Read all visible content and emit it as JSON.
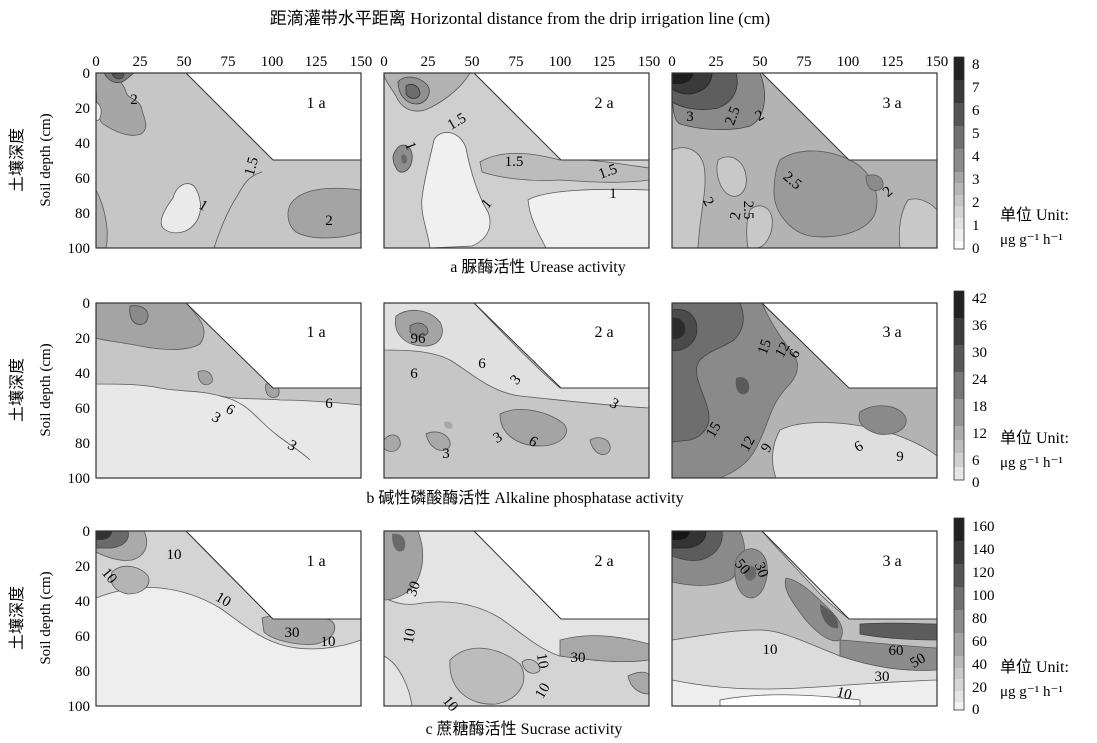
{
  "figure": {
    "top_axis_title": "距滴灌带水平距离 Horizontal distance from the drip irrigation line (cm)",
    "y_axis_title_cn": "土壤深度",
    "y_axis_title_en": "Soil depth (cm)",
    "x_ticks": [
      "0",
      "25",
      "50",
      "75",
      "100",
      "125",
      "150"
    ],
    "y_ticks": [
      "0",
      "20",
      "40",
      "60",
      "80",
      "100"
    ]
  },
  "chart_data": [
    {
      "type": "heatmap",
      "title": "a 脲酶活性 Urease activity",
      "panels": [
        "1 a",
        "2 a",
        "3 a"
      ],
      "xlim": [
        0,
        150
      ],
      "ylim": [
        100,
        0
      ],
      "colorbar": {
        "ticks": [
          "0",
          "1",
          "2",
          "3",
          "4",
          "5",
          "6",
          "7",
          "8"
        ],
        "unit_cn": "单位 Unit:",
        "unit_en": "μg g⁻¹ h⁻¹"
      },
      "contour_labels": [
        {
          "panel": 1,
          "labels": [
            {
              "text": "2",
              "x": 15,
              "y": 20
            },
            {
              "text": "1.5",
              "x": 60,
              "y": 55
            },
            {
              "text": "1",
              "x": 42,
              "y": 80
            },
            {
              "text": "2",
              "x": 130,
              "y": 85
            }
          ]
        },
        {
          "panel": 2,
          "labels": [
            {
              "text": "1.5",
              "x": 30,
              "y": 30
            },
            {
              "text": "1",
              "x": 12,
              "y": 47
            },
            {
              "text": "1.5",
              "x": 51,
              "y": 58
            },
            {
              "text": "1.5",
              "x": 92,
              "y": 67
            },
            {
              "text": "1",
              "x": 52,
              "y": 87
            },
            {
              "text": "1",
              "x": 130,
              "y": 73
            }
          ]
        },
        {
          "panel": 3,
          "labels": [
            {
              "text": "3",
              "x": 10,
              "y": 26
            },
            {
              "text": "2.5",
              "x": 34,
              "y": 26
            },
            {
              "text": "2",
              "x": 50,
              "y": 26
            },
            {
              "text": "2.5",
              "x": 68,
              "y": 62
            },
            {
              "text": "2.5",
              "x": 45,
              "y": 80
            },
            {
              "text": "2",
              "x": 35,
              "y": 88
            },
            {
              "text": "2",
              "x": 16,
              "y": 85
            },
            {
              "text": "2",
              "x": 122,
              "y": 75
            }
          ]
        }
      ]
    },
    {
      "type": "heatmap",
      "title": "b 碱性磷酸酶活性 Alkaline phosphatase activity",
      "panels": [
        "1 a",
        "2 a",
        "3 a"
      ],
      "xlim": [
        0,
        150
      ],
      "ylim": [
        100,
        0
      ],
      "colorbar": {
        "ticks": [
          "0",
          "6",
          "12",
          "18",
          "24",
          "30",
          "36",
          "42"
        ],
        "unit_cn": "单位 Unit:",
        "unit_en": "μg g⁻¹ h⁻¹"
      },
      "contour_labels": [
        {
          "panel": 1,
          "labels": [
            {
              "text": "6",
              "x": 68,
              "y": 67
            },
            {
              "text": "3",
              "x": 65,
              "y": 73
            },
            {
              "text": "6",
              "x": 130,
              "y": 60
            },
            {
              "text": "3",
              "x": 96,
              "y": 92
            }
          ]
        },
        {
          "panel": 2,
          "labels": [
            {
              "text": "96",
              "x": 18,
              "y": 22
            },
            {
              "text": "6",
              "x": 16,
              "y": 45
            },
            {
              "text": "6",
              "x": 40,
              "y": 38
            },
            {
              "text": "3",
              "x": 52,
              "y": 48
            },
            {
              "text": "3",
              "x": 51,
              "y": 77
            },
            {
              "text": "6",
              "x": 78,
              "y": 87
            },
            {
              "text": "3",
              "x": 28,
              "y": 97
            },
            {
              "text": "3",
              "x": 132,
              "y": 60
            }
          ]
        },
        {
          "panel": 3,
          "labels": [
            {
              "text": "15",
              "x": 50,
              "y": 32
            },
            {
              "text": "12",
              "x": 61,
              "y": 34
            },
            {
              "text": "6",
              "x": 66,
              "y": 34
            },
            {
              "text": "15",
              "x": 22,
              "y": 74
            },
            {
              "text": "12",
              "x": 44,
              "y": 88
            },
            {
              "text": "9",
              "x": 53,
              "y": 90
            },
            {
              "text": "6",
              "x": 106,
              "y": 89
            },
            {
              "text": "9",
              "x": 132,
              "y": 94
            }
          ]
        }
      ]
    },
    {
      "type": "heatmap",
      "title": "c 蔗糖酶活性 Sucrase activity",
      "panels": [
        "1 a",
        "2 a",
        "3 a"
      ],
      "xlim": [
        0,
        150
      ],
      "ylim": [
        100,
        0
      ],
      "colorbar": {
        "ticks": [
          "0",
          "20",
          "40",
          "60",
          "80",
          "100",
          "120",
          "140",
          "160"
        ],
        "unit_cn": "单位 Unit:",
        "unit_en": "μg g⁻¹ h⁻¹"
      },
      "contour_labels": [
        {
          "panel": 1,
          "labels": [
            {
              "text": "10",
              "x": 28,
              "y": 18
            },
            {
              "text": "10",
              "x": 8,
              "y": 37
            },
            {
              "text": "10",
              "x": 48,
              "y": 50
            },
            {
              "text": "30",
              "x": 107,
              "y": 75
            },
            {
              "text": "10",
              "x": 131,
              "y": 80
            }
          ]
        },
        {
          "panel": 2,
          "labels": [
            {
              "text": "30",
              "x": 17,
              "y": 35
            },
            {
              "text": "10",
              "x": 10,
              "y": 62
            },
            {
              "text": "10",
              "x": 91,
              "y": 75
            },
            {
              "text": "30",
              "x": 108,
              "y": 73
            },
            {
              "text": "10",
              "x": 92,
              "y": 95
            },
            {
              "text": "10",
              "x": 36,
              "y": 110
            }
          ]
        },
        {
          "panel": 3,
          "labels": [
            {
              "text": "50",
              "x": 41,
              "y": 38
            },
            {
              "text": "30",
              "x": 50,
              "y": 40
            },
            {
              "text": "10",
              "x": 54,
              "y": 70
            },
            {
              "text": "60",
              "x": 129,
              "y": 68
            },
            {
              "text": "50",
              "x": 145,
              "y": 74
            },
            {
              "text": "30",
              "x": 122,
              "y": 82
            },
            {
              "text": "10",
              "x": 92,
              "y": 97
            }
          ]
        }
      ]
    }
  ]
}
